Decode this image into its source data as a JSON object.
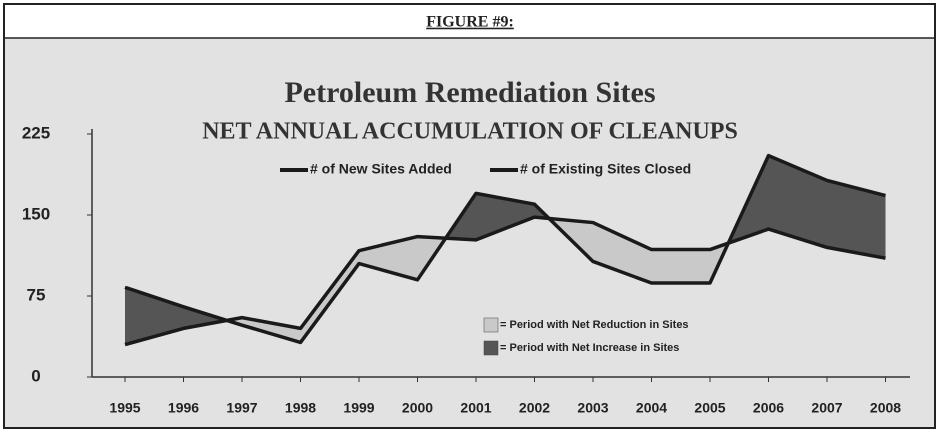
{
  "header": "FIGURE #9:",
  "chart_data": {
    "type": "line",
    "title": "Petroleum Remediation Sites",
    "subtitle": "NET ANNUAL ACCUMULATION OF CLEANUPS",
    "categories": [
      "1995",
      "1996",
      "1997",
      "1998",
      "1999",
      "2000",
      "2001",
      "2002",
      "2003",
      "2004",
      "2005",
      "2006",
      "2007",
      "2008"
    ],
    "series": [
      {
        "name": "# of New Sites Added",
        "color": "#1a1a1a",
        "values": [
          83,
          65,
          48,
          32,
          105,
          90,
          170,
          160,
          107,
          87,
          87,
          205,
          182,
          168
        ]
      },
      {
        "name": "# of Existing Sites Closed",
        "color": "#1a1a1a",
        "values": [
          30,
          45,
          55,
          45,
          117,
          130,
          127,
          148,
          143,
          118,
          118,
          137,
          120,
          110
        ]
      }
    ],
    "fill_legend": [
      {
        "label": "= Period with Net Reduction in Sites",
        "color": "#c9c9c9"
      },
      {
        "label": "= Period with Net Increase in Sites",
        "color": "#555555"
      }
    ],
    "ylim": [
      0,
      225
    ],
    "yticks": [
      0,
      75,
      150,
      225
    ]
  }
}
